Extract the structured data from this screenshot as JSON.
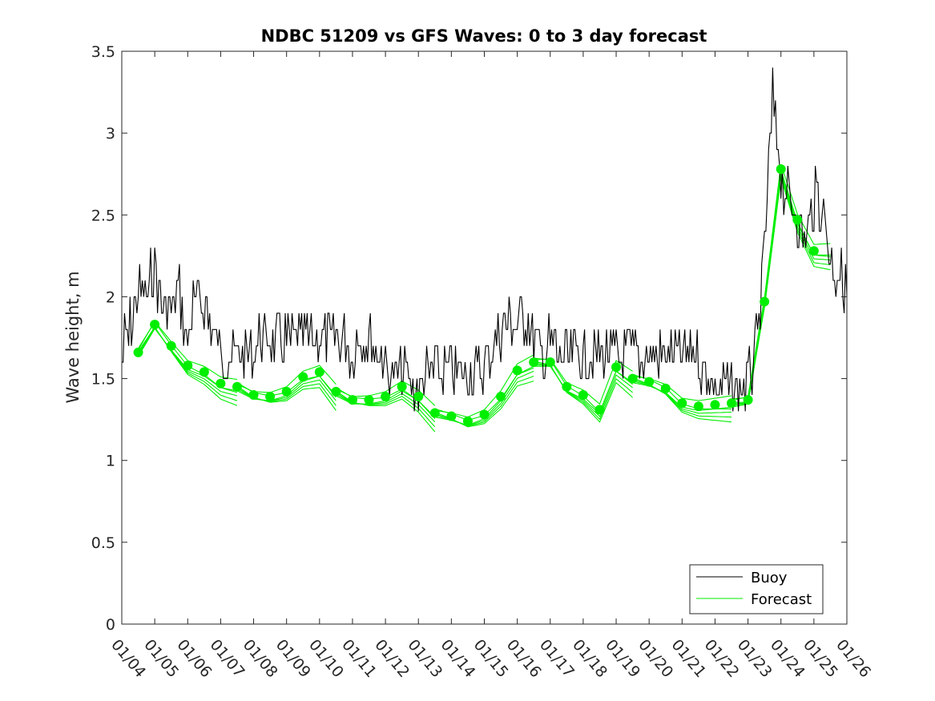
{
  "chart_data": {
    "type": "line",
    "title": "NDBC 51209 vs GFS Waves: 0 to 3 day forecast",
    "xlabel": "",
    "ylabel": "Wave height, m",
    "ylim": [
      0,
      3.5
    ],
    "xlim": [
      0,
      22
    ],
    "yticks": [
      0,
      0.5,
      1,
      1.5,
      2,
      2.5,
      3,
      3.5
    ],
    "ytick_labels": [
      "0",
      "0.5",
      "1",
      "1.5",
      "2",
      "2.5",
      "3",
      "3.5"
    ],
    "xticks": [
      "01/04",
      "01/05",
      "01/06",
      "01/07",
      "01/08",
      "01/09",
      "01/10",
      "01/11",
      "01/12",
      "01/13",
      "01/14",
      "01/15",
      "01/16",
      "01/17",
      "01/18",
      "01/19",
      "01/20",
      "01/21",
      "01/22",
      "01/23",
      "01/24",
      "01/25",
      "01/26"
    ],
    "legend": {
      "position": "bottom-right",
      "entries": [
        "Buoy",
        "Forecast"
      ]
    },
    "colors": {
      "buoy": "#000000",
      "forecast": "#00ee00",
      "marker": "#00ee00"
    },
    "buoy_keypoints": {
      "x": [
        0,
        0.25,
        0.5,
        0.75,
        1.0,
        1.25,
        1.5,
        1.75,
        2.0,
        2.25,
        2.5,
        3.0,
        3.5,
        4.0,
        4.5,
        5.0,
        5.5,
        6.0,
        6.5,
        7.0,
        7.25,
        7.5,
        8.0,
        8.5,
        9.0,
        9.5,
        10.0,
        10.5,
        11.0,
        11.5,
        12.0,
        12.25,
        12.5,
        12.75,
        13.0,
        13.5,
        14.0,
        14.5,
        15.0,
        15.5,
        16.0,
        16.5,
        17.0,
        17.5,
        18.0,
        18.5,
        18.8,
        19.0,
        19.15,
        19.3,
        19.5,
        19.75,
        20.0,
        20.25,
        20.5,
        20.75,
        21.0,
        21.25,
        21.5,
        22.0
      ],
      "y": [
        1.62,
        1.75,
        1.98,
        2.02,
        2.1,
        1.9,
        1.88,
        2.0,
        1.7,
        1.95,
        1.9,
        1.6,
        1.62,
        1.65,
        1.7,
        1.65,
        1.68,
        1.65,
        1.75,
        1.62,
        1.75,
        1.7,
        1.55,
        1.5,
        1.4,
        1.55,
        1.5,
        1.45,
        1.55,
        1.75,
        1.85,
        1.8,
        1.7,
        1.6,
        1.7,
        1.55,
        1.62,
        1.65,
        1.6,
        1.65,
        1.6,
        1.62,
        1.58,
        1.55,
        1.4,
        1.45,
        1.4,
        1.45,
        1.55,
        1.7,
        2.25,
        3.2,
        2.7,
        2.55,
        2.45,
        2.3,
        2.55,
        2.55,
        2.2,
        2.0
      ]
    },
    "forecast_markers": {
      "x": [
        0.5,
        1.0,
        1.5,
        2.0,
        2.5,
        3.0,
        3.5,
        4.0,
        4.5,
        5.0,
        5.5,
        6.0,
        6.5,
        7.0,
        7.5,
        8.0,
        8.5,
        9.0,
        9.5,
        10.0,
        10.5,
        11.0,
        11.5,
        12.0,
        12.5,
        13.0,
        13.5,
        14.0,
        14.5,
        15.0,
        15.5,
        16.0,
        16.5,
        17.0,
        17.5,
        18.0,
        18.5,
        19.0,
        19.5,
        20.0,
        20.5,
        21.0
      ],
      "y": [
        1.66,
        1.83,
        1.7,
        1.58,
        1.54,
        1.47,
        1.45,
        1.4,
        1.39,
        1.42,
        1.51,
        1.54,
        1.42,
        1.37,
        1.37,
        1.39,
        1.45,
        1.39,
        1.29,
        1.27,
        1.24,
        1.28,
        1.39,
        1.55,
        1.6,
        1.6,
        1.45,
        1.4,
        1.31,
        1.57,
        1.5,
        1.48,
        1.44,
        1.35,
        1.33,
        1.34,
        1.35,
        1.37,
        1.97,
        2.78,
        2.47,
        2.28
      ]
    },
    "forecast_run_offsets": [
      0.0,
      -0.04,
      -0.08,
      -0.12,
      0.03,
      -0.06
    ]
  }
}
